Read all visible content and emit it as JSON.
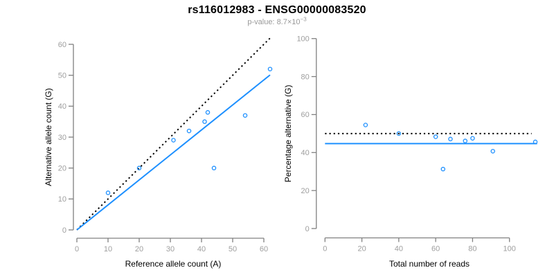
{
  "colors": {
    "accent_blue": "#1E90FF",
    "dotted_black": "#000000",
    "axis_line": "#808080",
    "tick_text": "#9e9e9e",
    "label_text": "#000000",
    "subtitle_text": "#999999",
    "background": "#ffffff"
  },
  "chart_data": {
    "title": "rs116012983 - ENSG00000083520",
    "subtitle": {
      "prefix": "p-value: ",
      "base": "8.7×10",
      "exponent": "−3"
    },
    "subtitle_plain": "p-value: 8.7x10^-3",
    "panels": [
      {
        "name": "allele-counts",
        "type": "scatter",
        "xlabel": "Reference allele count (A)",
        "ylabel": "Alternative allele count (G)",
        "x_ticks": [
          0,
          10,
          20,
          30,
          40,
          50,
          60
        ],
        "y_ticks": [
          0,
          10,
          20,
          30,
          40,
          50,
          60
        ],
        "xlim": [
          0,
          62
        ],
        "ylim": [
          0,
          62
        ],
        "grid": false,
        "points": [
          {
            "x": 10,
            "y": 12
          },
          {
            "x": 20,
            "y": 20
          },
          {
            "x": 31,
            "y": 29
          },
          {
            "x": 36,
            "y": 32
          },
          {
            "x": 41,
            "y": 35
          },
          {
            "x": 42,
            "y": 38
          },
          {
            "x": 44,
            "y": 20
          },
          {
            "x": 54,
            "y": 37
          },
          {
            "x": 62,
            "y": 52
          }
        ],
        "lines": [
          {
            "name": "expected-identity-line",
            "style": "dotted",
            "color": "#000000",
            "x1": 0,
            "y1": 0,
            "x2": 62,
            "y2": 62
          },
          {
            "name": "observed-ratio-line",
            "style": "solid",
            "color": "#1E90FF",
            "x1": 0,
            "y1": 0,
            "x2": 62,
            "y2": 50.1
          }
        ]
      },
      {
        "name": "percentage-vs-coverage",
        "type": "scatter",
        "xlabel": "Total number of reads",
        "ylabel": "Percentage alternative (G)",
        "x_ticks": [
          0,
          20,
          40,
          60,
          80,
          100
        ],
        "y_ticks": [
          0,
          20,
          40,
          60,
          80,
          100
        ],
        "xlim": [
          0,
          115
        ],
        "ylim": [
          0,
          104
        ],
        "grid": false,
        "points": [
          {
            "x": 22,
            "y": 54.5
          },
          {
            "x": 40,
            "y": 50.0
          },
          {
            "x": 60,
            "y": 48.3
          },
          {
            "x": 64,
            "y": 31.3
          },
          {
            "x": 68,
            "y": 47.1
          },
          {
            "x": 76,
            "y": 46.1
          },
          {
            "x": 80,
            "y": 47.5
          },
          {
            "x": 91,
            "y": 40.7
          },
          {
            "x": 114,
            "y": 45.6
          }
        ],
        "lines": [
          {
            "name": "expected-50pct-line",
            "style": "dotted",
            "color": "#000000",
            "x1": 0,
            "y1": 50,
            "x2": 112,
            "y2": 50
          },
          {
            "name": "observed-mean-line",
            "style": "solid",
            "color": "#1E90FF",
            "x1": 0,
            "y1": 44.7,
            "x2": 115,
            "y2": 44.7
          }
        ]
      }
    ]
  }
}
